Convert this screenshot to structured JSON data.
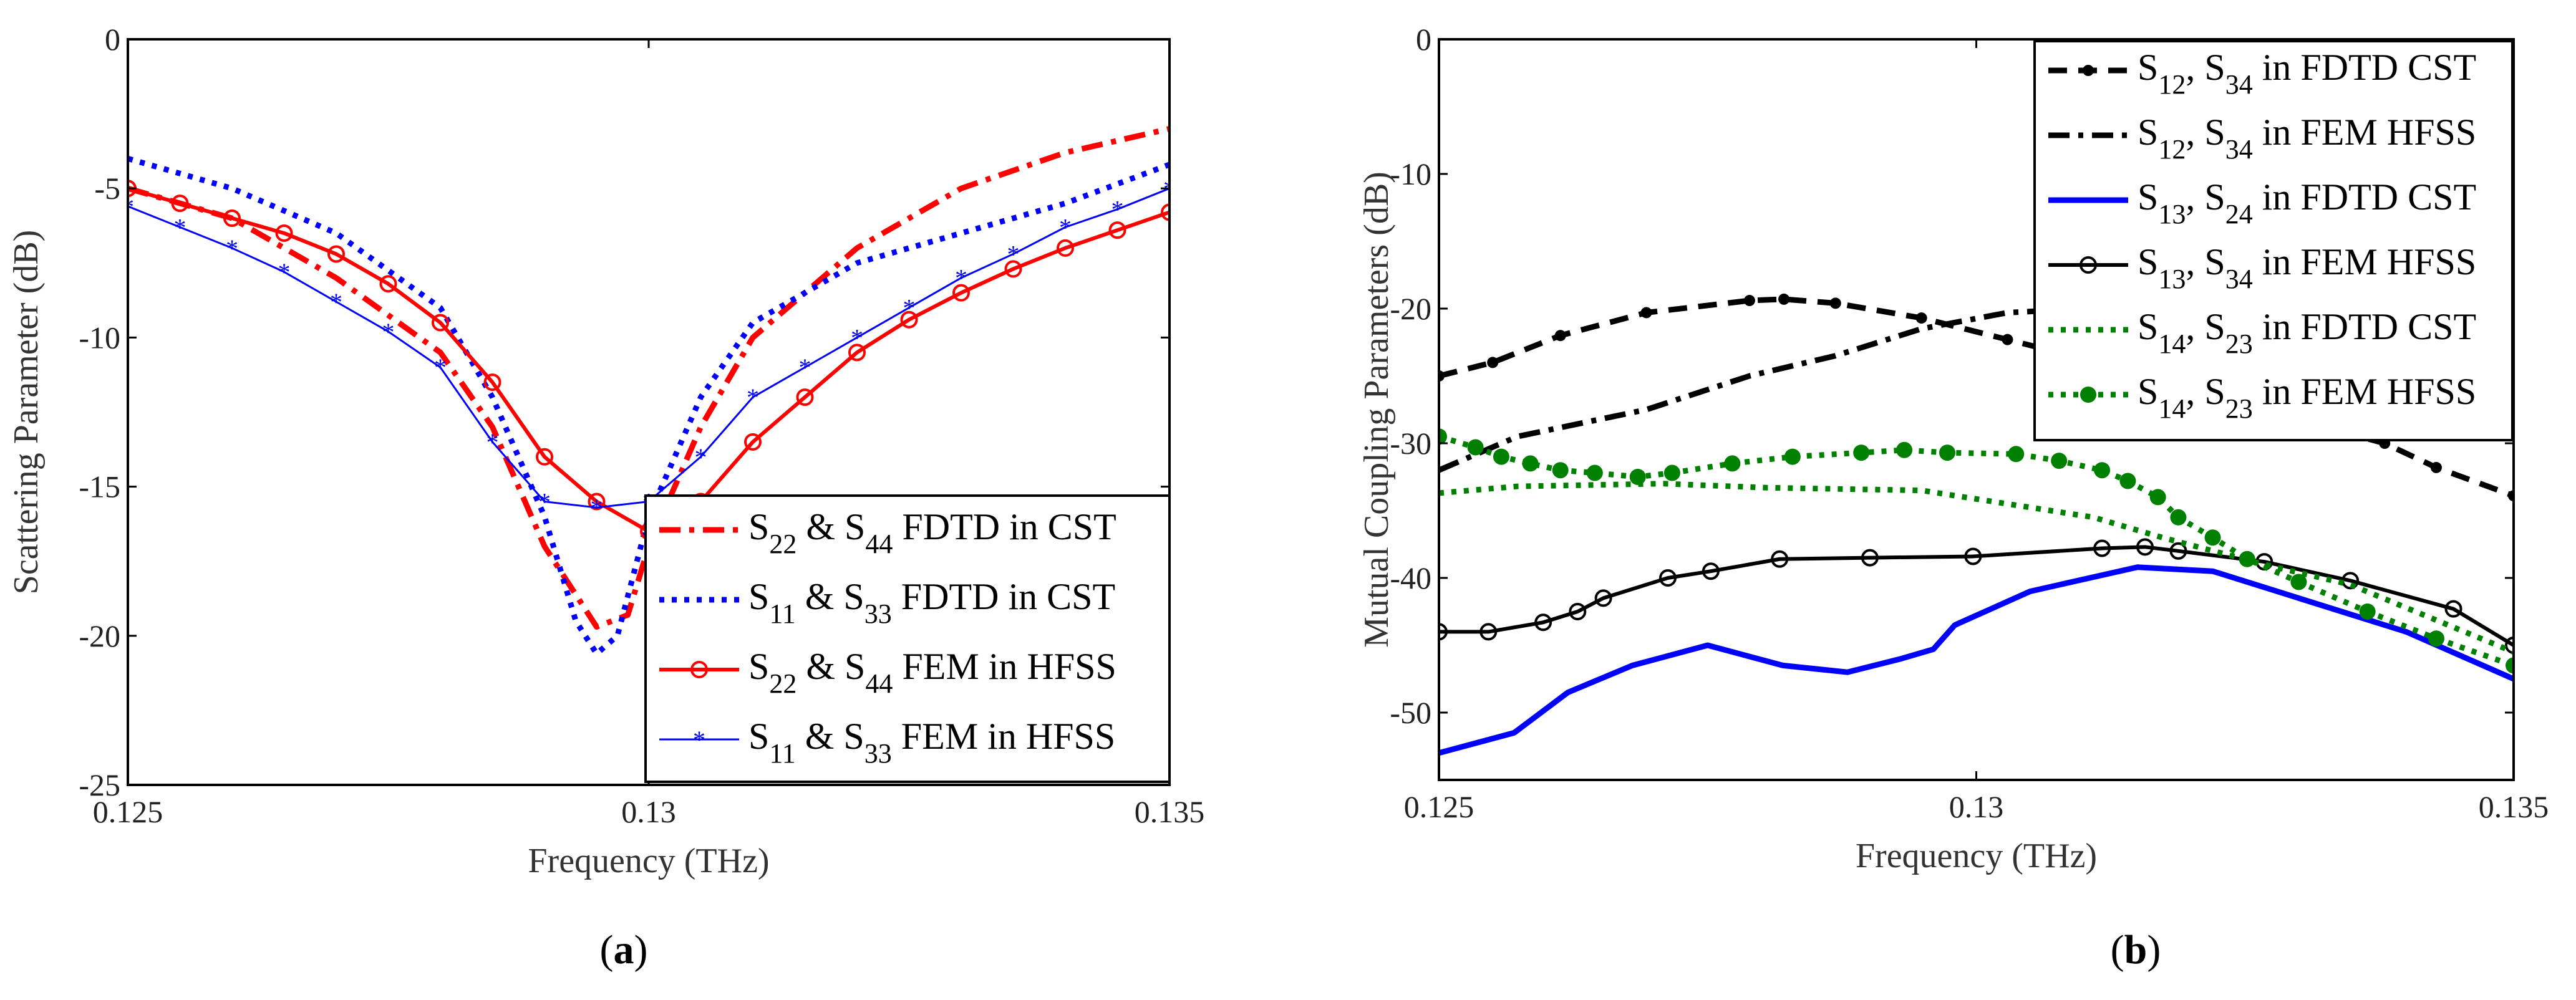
{
  "chart_data": [
    {
      "id": "a",
      "type": "line",
      "caption_open": "(",
      "caption_letter": "a",
      "caption_close": ")",
      "xlabel": "Frequency (THz)",
      "ylabel": "Scattering Parameter (dB)",
      "xlim": [
        0.125,
        0.135
      ],
      "ylim": [
        -25,
        0
      ],
      "xticks": [
        0.125,
        0.13,
        0.135
      ],
      "xtick_labels": [
        "0.125",
        "0.13",
        "0.135"
      ],
      "yticks": [
        0,
        -5,
        -10,
        -15,
        -20,
        -25
      ],
      "ytick_labels": [
        "0",
        "-5",
        "-10",
        "-15",
        "-20",
        "-25"
      ],
      "legend_position": "bottom-right",
      "series": [
        {
          "name": "S22 & S44 FDTD in CST",
          "label": [
            [
              "S",
              0
            ],
            [
              "22",
              1
            ],
            [
              " & S",
              0
            ],
            [
              "44",
              1
            ],
            [
              " FDTD in CST",
              0
            ]
          ],
          "color": "#ff0000",
          "style": "dashdot",
          "marker": "none",
          "x": [
            0.125,
            0.126,
            0.127,
            0.128,
            0.1285,
            0.129,
            0.1295,
            0.1298,
            0.13,
            0.1305,
            0.131,
            0.132,
            0.133,
            0.134,
            0.135
          ],
          "y": [
            -5,
            -6,
            -8,
            -10.5,
            -13,
            -17,
            -19.7,
            -19.3,
            -17,
            -13,
            -10,
            -7,
            -5,
            -3.8,
            -3
          ]
        },
        {
          "name": "S11 & S33 FDTD in CST",
          "label": [
            [
              "S",
              0
            ],
            [
              "11",
              1
            ],
            [
              " & S",
              0
            ],
            [
              "33",
              1
            ],
            [
              " FDTD in CST",
              0
            ]
          ],
          "color": "#0000ff",
          "style": "dotted",
          "marker": "none",
          "x": [
            0.125,
            0.126,
            0.127,
            0.128,
            0.1285,
            0.129,
            0.1293,
            0.1295,
            0.1297,
            0.13,
            0.1305,
            0.131,
            0.132,
            0.133,
            0.134,
            0.135
          ],
          "y": [
            -4,
            -5,
            -6.5,
            -9,
            -12,
            -16,
            -19.5,
            -20.6,
            -20,
            -16,
            -12,
            -9.5,
            -7.5,
            -6.5,
            -5.5,
            -4.2
          ]
        },
        {
          "name": "S22 & S44 FEM in HFSS",
          "label": [
            [
              "S",
              0
            ],
            [
              "22",
              1
            ],
            [
              " & S",
              0
            ],
            [
              "44",
              1
            ],
            [
              " FEM in HFSS",
              0
            ]
          ],
          "color": "#ff0000",
          "style": "solid",
          "marker": "circle",
          "x": [
            0.125,
            0.1255,
            0.126,
            0.1265,
            0.127,
            0.1275,
            0.128,
            0.1285,
            0.129,
            0.1295,
            0.13,
            0.1305,
            0.131,
            0.1315,
            0.132,
            0.1325,
            0.133,
            0.1335,
            0.134,
            0.1345,
            0.135
          ],
          "y": [
            -5,
            -5.5,
            -6,
            -6.5,
            -7.2,
            -8.2,
            -9.5,
            -11.5,
            -14,
            -15.5,
            -16.5,
            -15.5,
            -13.5,
            -12,
            -10.5,
            -9.4,
            -8.5,
            -7.7,
            -7,
            -6.4,
            -5.8
          ]
        },
        {
          "name": "S11 & S33 FEM in HFSS",
          "label": [
            [
              "S",
              0
            ],
            [
              "11",
              1
            ],
            [
              " & S",
              0
            ],
            [
              "33",
              1
            ],
            [
              " FEM in HFSS",
              0
            ]
          ],
          "color": "#0000ff",
          "style": "thin",
          "marker": "star",
          "x": [
            0.125,
            0.1255,
            0.126,
            0.1265,
            0.127,
            0.1275,
            0.128,
            0.1285,
            0.129,
            0.1295,
            0.13,
            0.1305,
            0.131,
            0.1315,
            0.132,
            0.1325,
            0.133,
            0.1335,
            0.134,
            0.1345,
            0.135
          ],
          "y": [
            -5.6,
            -6.3,
            -7,
            -7.8,
            -8.8,
            -9.8,
            -11,
            -13.5,
            -15.5,
            -15.7,
            -15.5,
            -14,
            -12,
            -11,
            -10,
            -9,
            -8,
            -7.2,
            -6.3,
            -5.7,
            -5
          ]
        }
      ]
    },
    {
      "id": "b",
      "type": "line",
      "caption_open": "(",
      "caption_letter": "b",
      "caption_close": ")",
      "xlabel": "Frequency (THz)",
      "ylabel": "Mutual Coupling Parameters (dB)",
      "xlim": [
        0.125,
        0.135
      ],
      "ylim": [
        -55,
        0
      ],
      "xticks": [
        0.125,
        0.13,
        0.135
      ],
      "xtick_labels": [
        "0.125",
        "0.13",
        "0.135"
      ],
      "yticks": [
        0,
        -10,
        -20,
        -30,
        -40,
        -50
      ],
      "ytick_labels": [
        "0",
        "-10",
        "-20",
        "-30",
        "-40",
        "-50"
      ],
      "legend_position": "top-right",
      "series": [
        {
          "name": "S12, S34 in FDTD CST",
          "label": [
            [
              "S",
              0
            ],
            [
              "12",
              1
            ],
            [
              ", S",
              0
            ],
            [
              "34",
              1
            ],
            [
              " in FDTD CST",
              0
            ]
          ],
          "color": "#000000",
          "style": "dashed",
          "marker": "dot",
          "x": [
            0.125,
            0.1255,
            0.12613,
            0.12693,
            0.12789,
            0.12821,
            0.12869,
            0.12949,
            0.13029,
            0.13188,
            0.13308,
            0.1338,
            0.13428,
            0.135
          ],
          "y": [
            -25,
            -24,
            -22,
            -20.3,
            -19.4,
            -19.3,
            -19.6,
            -20.7,
            -22.3,
            -25.5,
            -28.5,
            -30,
            -31.8,
            -33.9
          ]
        },
        {
          "name": "S12, S34 in FEM HFSS",
          "label": [
            [
              "S",
              0
            ],
            [
              "12",
              1
            ],
            [
              ", S",
              0
            ],
            [
              "34",
              1
            ],
            [
              " in FEM HFSS",
              0
            ]
          ],
          "color": "#000000",
          "style": "dashdot",
          "marker": "none",
          "x": [
            0.125,
            0.12573,
            0.12693,
            0.12789,
            0.12869,
            0.12949,
            0.13029,
            0.1315,
            0.133
          ],
          "y": [
            -32,
            -29.5,
            -27.5,
            -25,
            -23.5,
            -21.5,
            -20.3,
            -19.8,
            -21
          ]
        },
        {
          "name": "S13, S24 in FDTD CST",
          "label": [
            [
              "S",
              0
            ],
            [
              "13",
              1
            ],
            [
              ", S",
              0
            ],
            [
              "24",
              1
            ],
            [
              " in FDTD CST",
              0
            ]
          ],
          "color": "#0000ff",
          "style": "thick",
          "marker": "none",
          "x": [
            0.125,
            0.1257,
            0.1262,
            0.1268,
            0.1275,
            0.1282,
            0.1288,
            0.1293,
            0.1296,
            0.1298,
            0.1305,
            0.1315,
            0.1322,
            0.133,
            0.134,
            0.135
          ],
          "y": [
            -53,
            -51.5,
            -48.5,
            -46.5,
            -45,
            -46.5,
            -47,
            -46,
            -45.3,
            -43.5,
            -41,
            -39.2,
            -39.5,
            -41.5,
            -44,
            -47.5
          ]
        },
        {
          "name": "S13, S34 in FEM HFSS",
          "label": [
            [
              "S",
              0
            ],
            [
              "13",
              1
            ],
            [
              ", S",
              0
            ],
            [
              "34",
              1
            ],
            [
              " in FEM HFSS",
              0
            ]
          ],
          "color": "#000000",
          "style": "solid",
          "marker": "circle",
          "x": [
            0.125,
            0.12546,
            0.12597,
            0.12629,
            0.12653,
            0.12713,
            0.12753,
            0.12817,
            0.12901,
            0.12997,
            0.13117,
            0.13157,
            0.13188,
            0.13268,
            0.13348,
            0.13444,
            0.135
          ],
          "y": [
            -44,
            -44,
            -43.3,
            -42.5,
            -41.5,
            -40,
            -39.5,
            -38.6,
            -38.5,
            -38.4,
            -37.8,
            -37.7,
            -38,
            -38.8,
            -40.2,
            -42.3,
            -45
          ]
        },
        {
          "name": "S14, S23 in FDTD CST",
          "label": [
            [
              "S",
              0
            ],
            [
              "14",
              1
            ],
            [
              ", S",
              0
            ],
            [
              "23",
              1
            ],
            [
              " in FDTD CST",
              0
            ]
          ],
          "color": "#008000",
          "style": "dotted",
          "marker": "none",
          "x": [
            0.125,
            0.12573,
            0.12709,
            0.12805,
            0.12949,
            0.13029,
            0.13109,
            0.13173,
            0.13268,
            0.13348,
            0.135
          ],
          "y": [
            -33.7,
            -33.2,
            -33,
            -33.3,
            -33.5,
            -34.5,
            -35.5,
            -37,
            -39,
            -40.5,
            -45.5
          ]
        },
        {
          "name": "S14, S23 in FEM HFSS",
          "label": [
            [
              "S",
              0
            ],
            [
              "14",
              1
            ],
            [
              ", S",
              0
            ],
            [
              "23",
              1
            ],
            [
              " in FEM HFSS",
              0
            ]
          ],
          "color": "#008000",
          "style": "dotted",
          "marker": "bigdot",
          "x": [
            0.125,
            0.12534,
            0.12558,
            0.12585,
            0.12613,
            0.12645,
            0.12685,
            0.12717,
            0.12773,
            0.12829,
            0.12893,
            0.12933,
            0.12973,
            0.13037,
            0.13077,
            0.13117,
            0.13141,
            0.13169,
            0.13188,
            0.1322,
            0.13252,
            0.133,
            0.13364,
            0.13428,
            0.135
          ],
          "y": [
            -29.5,
            -30.3,
            -31,
            -31.5,
            -32,
            -32.2,
            -32.5,
            -32.2,
            -31.5,
            -31,
            -30.7,
            -30.5,
            -30.7,
            -30.8,
            -31.3,
            -32,
            -32.8,
            -34,
            -35.5,
            -37,
            -38.6,
            -40.3,
            -42.5,
            -44.5,
            -46.5
          ]
        }
      ]
    }
  ]
}
